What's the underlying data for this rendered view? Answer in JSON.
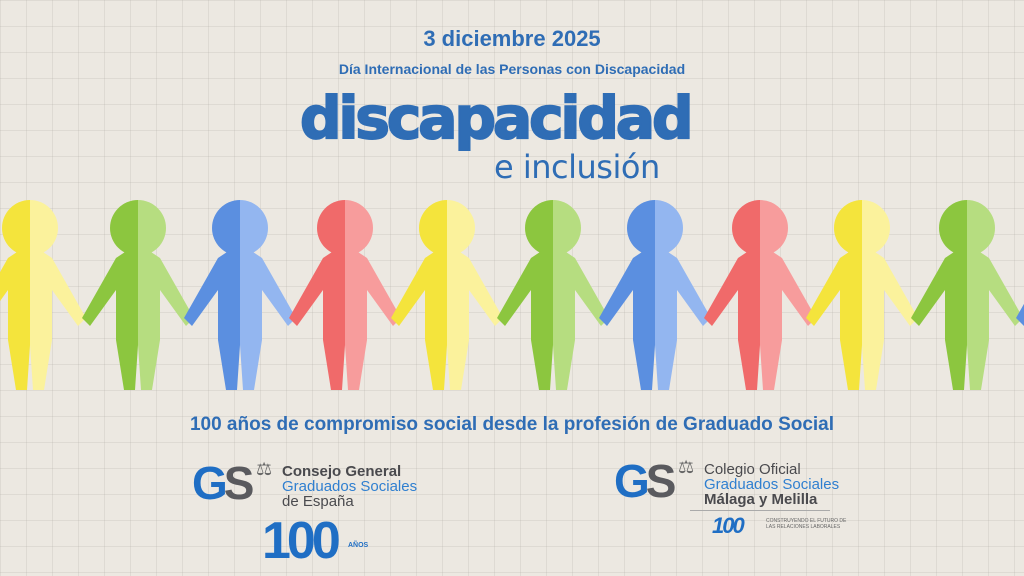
{
  "header": {
    "date": "3 diciembre 2025",
    "subtitle": "Día Internacional de las Personas con Discapacidad"
  },
  "title": {
    "line1": "discapacidad",
    "line2": "e inclusión",
    "color": "#2f6db5"
  },
  "figures": {
    "colors": [
      [
        "#f4e43c",
        "#fbf29c"
      ],
      [
        "#8cc63f",
        "#b6dd80"
      ],
      [
        "#5b8fe0",
        "#93b6f0"
      ],
      [
        "#f06a6a",
        "#f79c9c"
      ],
      [
        "#f4e43c",
        "#fbf29c"
      ],
      [
        "#8cc63f",
        "#b6dd80"
      ],
      [
        "#5b8fe0",
        "#93b6f0"
      ],
      [
        "#f06a6a",
        "#f79c9c"
      ],
      [
        "#f4e43c",
        "#fbf29c"
      ],
      [
        "#8cc63f",
        "#b6dd80"
      ],
      [
        "#5b8fe0",
        "#93b6f0"
      ]
    ]
  },
  "tagline": "100 años de compromiso social desde la profesión de Graduado Social",
  "logo_left": {
    "mark_g": "G",
    "mark_s": "S",
    "line1": "Consejo General",
    "line2": "Graduados Sociales",
    "line3": "de España",
    "anniv_number": "100",
    "anniv_label": "AÑOS"
  },
  "logo_right": {
    "mark_g": "G",
    "mark_s": "S",
    "line1": "Colegio Oficial",
    "line2": "Graduados Sociales",
    "line3": "Málaga y Melilla",
    "anniv_number": "100",
    "anniv_text": "CONSTRUYENDO EL FUTURO DE LAS RELACIONES LABORALES"
  }
}
